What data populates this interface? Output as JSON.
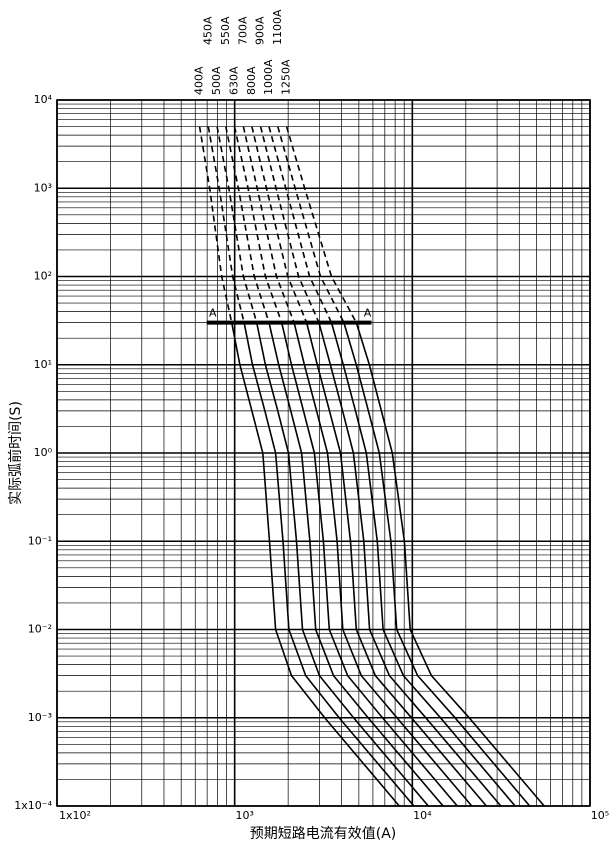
{
  "chart_data": {
    "type": "line",
    "log_x": true,
    "log_y": true,
    "grid": true,
    "line_width": 1.6,
    "y_label": "实际弧前时间(S)",
    "x_label": "预期短路电流有效值(A)",
    "xlim": [
      100,
      100000
    ],
    "ylim": [
      0.0001,
      10000
    ],
    "xticks": [
      {
        "value": 100,
        "label": "1x10²"
      },
      {
        "value": 1000,
        "label": "10³"
      },
      {
        "value": 10000,
        "label": "10⁴"
      },
      {
        "value": 100000,
        "label": "10⁵"
      }
    ],
    "yticks": [
      {
        "value": 0.0001,
        "label": "1x10⁻⁴"
      },
      {
        "value": 0.001,
        "label": "10⁻³"
      },
      {
        "value": 0.01,
        "label": "10⁻²"
      },
      {
        "value": 0.1,
        "label": "10⁻¹"
      },
      {
        "value": 1,
        "label": "10⁰"
      },
      {
        "value": 10,
        "label": "10¹"
      },
      {
        "value": 100,
        "label": "10²"
      },
      {
        "value": 1000,
        "label": "10³"
      },
      {
        "value": 10000,
        "label": "10⁴"
      }
    ],
    "xminor": [
      200,
      300,
      400,
      500,
      600,
      700,
      800,
      900,
      2000,
      3000,
      4000,
      5000,
      6000,
      7000,
      8000,
      9000,
      20000,
      30000,
      40000,
      50000,
      60000,
      70000,
      80000,
      90000
    ],
    "yminor": [
      0.0002,
      0.0003,
      0.0004,
      0.0005,
      0.0006,
      0.0007,
      0.0008,
      0.0009,
      0.002,
      0.003,
      0.004,
      0.005,
      0.006,
      0.007,
      0.008,
      0.009,
      0.02,
      0.03,
      0.04,
      0.05,
      0.06,
      0.07,
      0.08,
      0.09,
      0.2,
      0.3,
      0.4,
      0.5,
      0.6,
      0.7,
      0.8,
      0.9,
      2,
      3,
      4,
      5,
      6,
      7,
      8,
      9,
      20,
      30,
      40,
      50,
      60,
      70,
      80,
      90,
      200,
      300,
      400,
      500,
      600,
      700,
      800,
      900,
      2000,
      3000,
      4000,
      5000,
      6000,
      7000,
      8000,
      9000
    ],
    "annotations": [
      {
        "text": "A",
        "x": 697,
        "y": 30
      },
      {
        "text": "A",
        "x": 5890,
        "y": 30
      }
    ],
    "series": [
      {
        "name": "400A",
        "color": "#000000",
        "segments": [
          {
            "style": "dashed",
            "x": [
              635,
              724,
              845,
              962
            ],
            "values": [
              5000,
              1000,
              100,
              30
            ]
          },
          {
            "style": "solid",
            "x": [
              962,
              1070,
              1250,
              1440,
              1570,
              1700,
              2090,
              3210,
              8450
            ],
            "values": [
              30,
              10,
              3,
              1,
              0.1,
              0.01,
              0.003,
              0.001,
              0.0001
            ]
          }
        ]
      },
      {
        "name": "450A",
        "color": "#000000",
        "segments": [
          {
            "style": "dashed",
            "x": [
              711,
              818,
              975,
              1130
            ],
            "values": [
              5000,
              1000,
              100,
              30
            ]
          },
          {
            "style": "solid",
            "x": [
              1130,
              1260,
              1480,
              1700,
              1870,
              2020,
              2510,
              3870,
              10200
            ],
            "values": [
              30,
              10,
              3,
              1,
              0.1,
              0.01,
              0.003,
              0.001,
              0.0001
            ]
          }
        ]
      },
      {
        "name": "500A",
        "color": "#000000",
        "segments": [
          {
            "style": "dashed",
            "x": [
              796,
              927,
              1120,
              1330
            ],
            "values": [
              5000,
              1000,
              100,
              30
            ]
          },
          {
            "style": "solid",
            "x": [
              1330,
              1490,
              1750,
              2010,
              2230,
              2410,
              3000,
              4670,
              12300
            ],
            "values": [
              30,
              10,
              3,
              1,
              0.1,
              0.01,
              0.003,
              0.001,
              0.0001
            ]
          }
        ]
      },
      {
        "name": "550A",
        "color": "#000000",
        "segments": [
          {
            "style": "dashed",
            "x": [
              891,
              1050,
              1290,
              1560
            ],
            "values": [
              5000,
              1000,
              100,
              30
            ]
          },
          {
            "style": "solid",
            "x": [
              1560,
              1770,
              2070,
              2380,
              2650,
              2860,
              3600,
              5640,
              14900
            ],
            "values": [
              30,
              10,
              3,
              1,
              0.1,
              0.01,
              0.003,
              0.001,
              0.0001
            ]
          }
        ]
      },
      {
        "name": "630A",
        "color": "#000000",
        "segments": [
          {
            "style": "dashed",
            "x": [
              998,
              1190,
              1490,
              1840
            ],
            "values": [
              5000,
              1000,
              100,
              30
            ]
          },
          {
            "style": "solid",
            "x": [
              1840,
              2090,
              2440,
              2810,
              3160,
              3410,
              4320,
              6790,
              17900
            ],
            "values": [
              30,
              10,
              3,
              1,
              0.1,
              0.01,
              0.003,
              0.001,
              0.0001
            ]
          }
        ]
      },
      {
        "name": "700A",
        "color": "#000000",
        "segments": [
          {
            "style": "dashed",
            "x": [
              1120,
              1340,
              1720,
              2160
            ],
            "values": [
              5000,
              1000,
              100,
              30
            ]
          },
          {
            "style": "solid",
            "x": [
              2160,
              2470,
              2890,
              3330,
              3770,
              4060,
              5160,
              8200,
              21600
            ],
            "values": [
              30,
              10,
              3,
              1,
              0.1,
              0.01,
              0.003,
              0.001,
              0.0001
            ]
          }
        ]
      },
      {
        "name": "800A",
        "color": "#000000",
        "segments": [
          {
            "style": "dashed",
            "x": [
              1250,
              1510,
              1990,
              2540
            ],
            "values": [
              5000,
              1000,
              100,
              30
            ]
          },
          {
            "style": "solid",
            "x": [
              2540,
              2920,
              3420,
              3940,
              4490,
              4840,
              6190,
              9890,
              26100
            ],
            "values": [
              30,
              10,
              3,
              1,
              0.1,
              0.01,
              0.003,
              0.001,
              0.0001
            ]
          }
        ]
      },
      {
        "name": "900A",
        "color": "#000000",
        "segments": [
          {
            "style": "dashed",
            "x": [
              1400,
              1710,
              2290,
              2980
            ],
            "values": [
              5000,
              1000,
              100,
              30
            ]
          },
          {
            "style": "solid",
            "x": [
              2980,
              3460,
              4050,
              4660,
              5330,
              5750,
              7430,
              11900,
              31500
            ],
            "values": [
              30,
              10,
              3,
              1,
              0.1,
              0.01,
              0.003,
              0.001,
              0.0001
            ]
          }
        ]
      },
      {
        "name": "1000A",
        "color": "#000000",
        "segments": [
          {
            "style": "dashed",
            "x": [
              1560,
              1940,
              2640,
              3510
            ],
            "values": [
              5000,
              1000,
              100,
              30
            ]
          },
          {
            "style": "solid",
            "x": [
              3510,
              4090,
              4790,
              5510,
              6350,
              6850,
              8910,
              14400,
              37900
            ],
            "values": [
              30,
              10,
              3,
              1,
              0.1,
              0.01,
              0.003,
              0.001,
              0.0001
            ]
          }
        ]
      },
      {
        "name": "1100A",
        "color": "#000000",
        "segments": [
          {
            "style": "dashed",
            "x": [
              1750,
              2190,
              3040,
              4120
            ],
            "values": [
              5000,
              1000,
              100,
              30
            ]
          },
          {
            "style": "solid",
            "x": [
              4120,
              4840,
              5660,
              6520,
              7570,
              8170,
              10700,
              17400,
              45800
            ],
            "values": [
              30,
              10,
              3,
              1,
              0.1,
              0.01,
              0.003,
              0.001,
              0.0001
            ]
          }
        ]
      },
      {
        "name": "1250A",
        "color": "#000000",
        "segments": [
          {
            "style": "dashed",
            "x": [
              1960,
              2480,
              3510,
              4840
            ],
            "values": [
              5000,
              1000,
              100,
              30
            ]
          },
          {
            "style": "solid",
            "x": [
              4840,
              5730,
              6700,
              7710,
              9020,
              9730,
              12800,
              20900,
              55200
            ],
            "values": [
              30,
              10,
              3,
              1,
              0.1,
              0.01,
              0.003,
              0.001,
              0.0001
            ]
          }
        ]
      }
    ]
  }
}
